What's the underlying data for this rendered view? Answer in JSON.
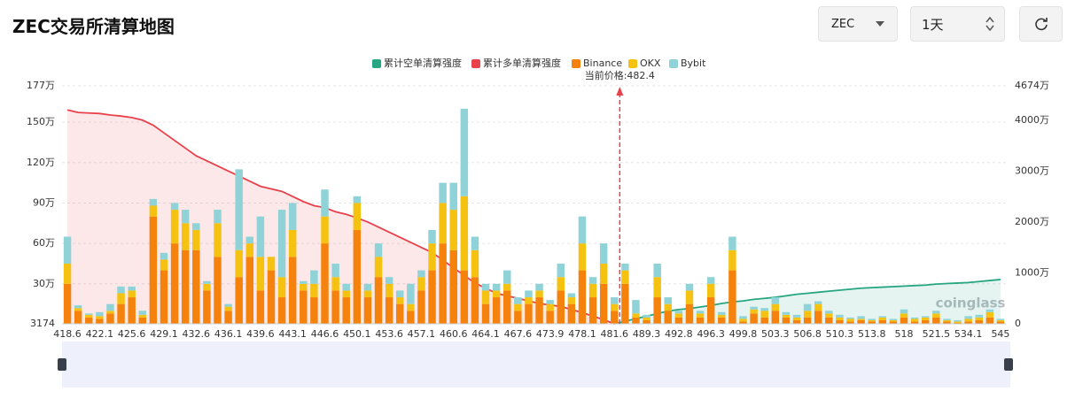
{
  "header": {
    "title": "ZEC交易所清算地图",
    "coin": "ZEC",
    "interval": "1天"
  },
  "chart_data": {
    "type": "bar",
    "annotation": "当前价格:482.4",
    "watermark": "coinglass",
    "categories": [
      "418.6",
      null,
      null,
      "422.1",
      null,
      null,
      "425.6",
      null,
      null,
      "429.1",
      null,
      null,
      "432.6",
      null,
      null,
      "436.1",
      null,
      null,
      "439.6",
      null,
      null,
      "443.1",
      null,
      null,
      "446.6",
      null,
      null,
      "450.1",
      null,
      null,
      "453.6",
      null,
      null,
      "457.1",
      null,
      null,
      "460.6",
      null,
      null,
      "464.1",
      null,
      null,
      "467.6",
      null,
      null,
      "473.9",
      null,
      null,
      "478.1",
      null,
      null,
      "481.6",
      null,
      null,
      "489.3",
      null,
      null,
      "492.8",
      null,
      null,
      "496.3",
      null,
      null,
      "499.8",
      null,
      null,
      "503.3",
      null,
      null,
      "506.8",
      null,
      null,
      "510.3",
      null,
      null,
      "513.8",
      null,
      null,
      "518",
      null,
      null,
      "521.5",
      null,
      null,
      "534.1",
      null,
      null,
      "545"
    ],
    "series": [
      {
        "name": "累计空单清算强度",
        "type": "area",
        "axis": "y2",
        "color": "#26a680",
        "values": [
          null,
          null,
          null,
          null,
          null,
          null,
          null,
          null,
          null,
          null,
          null,
          null,
          null,
          null,
          null,
          null,
          null,
          null,
          null,
          null,
          null,
          null,
          null,
          null,
          null,
          null,
          null,
          null,
          null,
          null,
          null,
          null,
          null,
          null,
          null,
          null,
          null,
          null,
          null,
          null,
          null,
          null,
          null,
          null,
          null,
          null,
          null,
          null,
          null,
          null,
          null,
          0,
          500000,
          1000000,
          1500000,
          2000000,
          2500000,
          2800000,
          3000000,
          3300000,
          3600000,
          4000000,
          4300000,
          4500000,
          4800000,
          5000000,
          5200000,
          5500000,
          5800000,
          6000000,
          6200000,
          6400000,
          6600000,
          6800000,
          7000000,
          7100000,
          7200000,
          7300000,
          7400000,
          7500000,
          7600000,
          7800000,
          7900000,
          8000000,
          8100000,
          8300000,
          8500000,
          8700000
        ]
      },
      {
        "name": "累计多单清算强度",
        "type": "area",
        "axis": "y2",
        "color": "#e8414b",
        "values": [
          42000000,
          41500000,
          41400000,
          41300000,
          41000000,
          40800000,
          40500000,
          40000000,
          39000000,
          37500000,
          36000000,
          34500000,
          33000000,
          32000000,
          31000000,
          30000000,
          29000000,
          28000000,
          27000000,
          26500000,
          26000000,
          25000000,
          24000000,
          23200000,
          22800000,
          22000000,
          21500000,
          20800000,
          20000000,
          19000000,
          18000000,
          17000000,
          16000000,
          15000000,
          14000000,
          12500000,
          11000000,
          9500000,
          8000000,
          7000000,
          6000000,
          5500000,
          5000000,
          4500000,
          4000000,
          3700000,
          3400000,
          2800000,
          2200000,
          1500000,
          800000,
          0,
          null,
          null,
          null,
          null,
          null,
          null,
          null,
          null,
          null,
          null,
          null,
          null,
          null,
          null,
          null,
          null,
          null,
          null,
          null,
          null,
          null,
          null,
          null,
          null,
          null,
          null,
          null,
          null,
          null,
          null,
          null,
          null,
          null,
          null,
          null,
          null
        ]
      },
      {
        "name": "Binance",
        "type": "bar",
        "color": "#f5820d",
        "values": [
          300000,
          100000,
          50000,
          40000,
          80000,
          150000,
          200000,
          50000,
          800000,
          400000,
          600000,
          550000,
          550000,
          250000,
          500000,
          100000,
          350000,
          500000,
          250000,
          400000,
          200000,
          500000,
          250000,
          200000,
          600000,
          250000,
          200000,
          700000,
          200000,
          350000,
          200000,
          150000,
          100000,
          250000,
          400000,
          600000,
          550000,
          400000,
          350000,
          150000,
          200000,
          250000,
          100000,
          150000,
          200000,
          100000,
          250000,
          150000,
          400000,
          200000,
          300000,
          100000,
          300000,
          50000,
          30000,
          200000,
          100000,
          50000,
          150000,
          50000,
          200000,
          50000,
          400000,
          20000,
          80000,
          50000,
          100000,
          50000,
          30000,
          50000,
          100000,
          50000,
          30000,
          20000,
          30000,
          20000,
          30000,
          20000,
          50000,
          20000,
          30000,
          50000,
          20000,
          10000,
          20000,
          30000,
          50000,
          20000
        ]
      },
      {
        "name": "OKX",
        "type": "bar",
        "color": "#f5c211",
        "values": [
          150000,
          20000,
          20000,
          20000,
          20000,
          80000,
          50000,
          20000,
          80000,
          80000,
          250000,
          200000,
          150000,
          50000,
          250000,
          30000,
          200000,
          100000,
          250000,
          100000,
          150000,
          200000,
          50000,
          100000,
          200000,
          100000,
          50000,
          200000,
          50000,
          150000,
          100000,
          50000,
          50000,
          100000,
          200000,
          300000,
          300000,
          550000,
          200000,
          100000,
          50000,
          50000,
          50000,
          50000,
          50000,
          50000,
          100000,
          50000,
          200000,
          100000,
          150000,
          50000,
          100000,
          30000,
          20000,
          150000,
          50000,
          30000,
          100000,
          30000,
          100000,
          20000,
          150000,
          20000,
          30000,
          50000,
          50000,
          20000,
          20000,
          50000,
          50000,
          30000,
          20000,
          20000,
          10000,
          10000,
          20000,
          10000,
          30000,
          20000,
          20000,
          30000,
          10000,
          10000,
          20000,
          20000,
          40000,
          10000
        ]
      },
      {
        "name": "Bybit",
        "type": "bar",
        "color": "#8fd3d8",
        "values": [
          200000,
          20000,
          10000,
          30000,
          50000,
          50000,
          30000,
          30000,
          50000,
          50000,
          50000,
          100000,
          50000,
          20000,
          100000,
          20000,
          600000,
          50000,
          300000,
          0,
          500000,
          200000,
          20000,
          100000,
          200000,
          100000,
          50000,
          50000,
          50000,
          100000,
          50000,
          50000,
          150000,
          50000,
          100000,
          150000,
          200000,
          650000,
          100000,
          50000,
          50000,
          100000,
          50000,
          50000,
          50000,
          30000,
          100000,
          30000,
          200000,
          50000,
          150000,
          50000,
          50000,
          100000,
          20000,
          100000,
          50000,
          20000,
          50000,
          20000,
          50000,
          20000,
          100000,
          20000,
          20000,
          20000,
          50000,
          20000,
          20000,
          50000,
          20000,
          20000,
          20000,
          10000,
          20000,
          10000,
          10000,
          10000,
          30000,
          10000,
          10000,
          20000,
          10000,
          10000,
          20000,
          20000,
          20000,
          10000
        ]
      }
    ],
    "ylim": [
      3174,
      1770000
    ],
    "yticks": [
      3174,
      {
        "value": 300000,
        "label": "30万"
      },
      {
        "value": 600000,
        "label": "60万"
      },
      {
        "value": 900000,
        "label": "90万"
      },
      {
        "value": 1200000,
        "label": "120万"
      },
      {
        "value": 1500000,
        "label": "150万"
      },
      {
        "value": 1770000,
        "label": "177万"
      }
    ],
    "y2lim": [
      0,
      46740000
    ],
    "y2ticks": [
      0,
      {
        "value": 10000000,
        "label": "1000万"
      },
      {
        "value": 20000000,
        "label": "2000万"
      },
      {
        "value": 30000000,
        "label": "3000万"
      },
      {
        "value": 40000000,
        "label": "4000万"
      },
      {
        "value": 46740000,
        "label": "4674万"
      }
    ],
    "grid": true
  }
}
